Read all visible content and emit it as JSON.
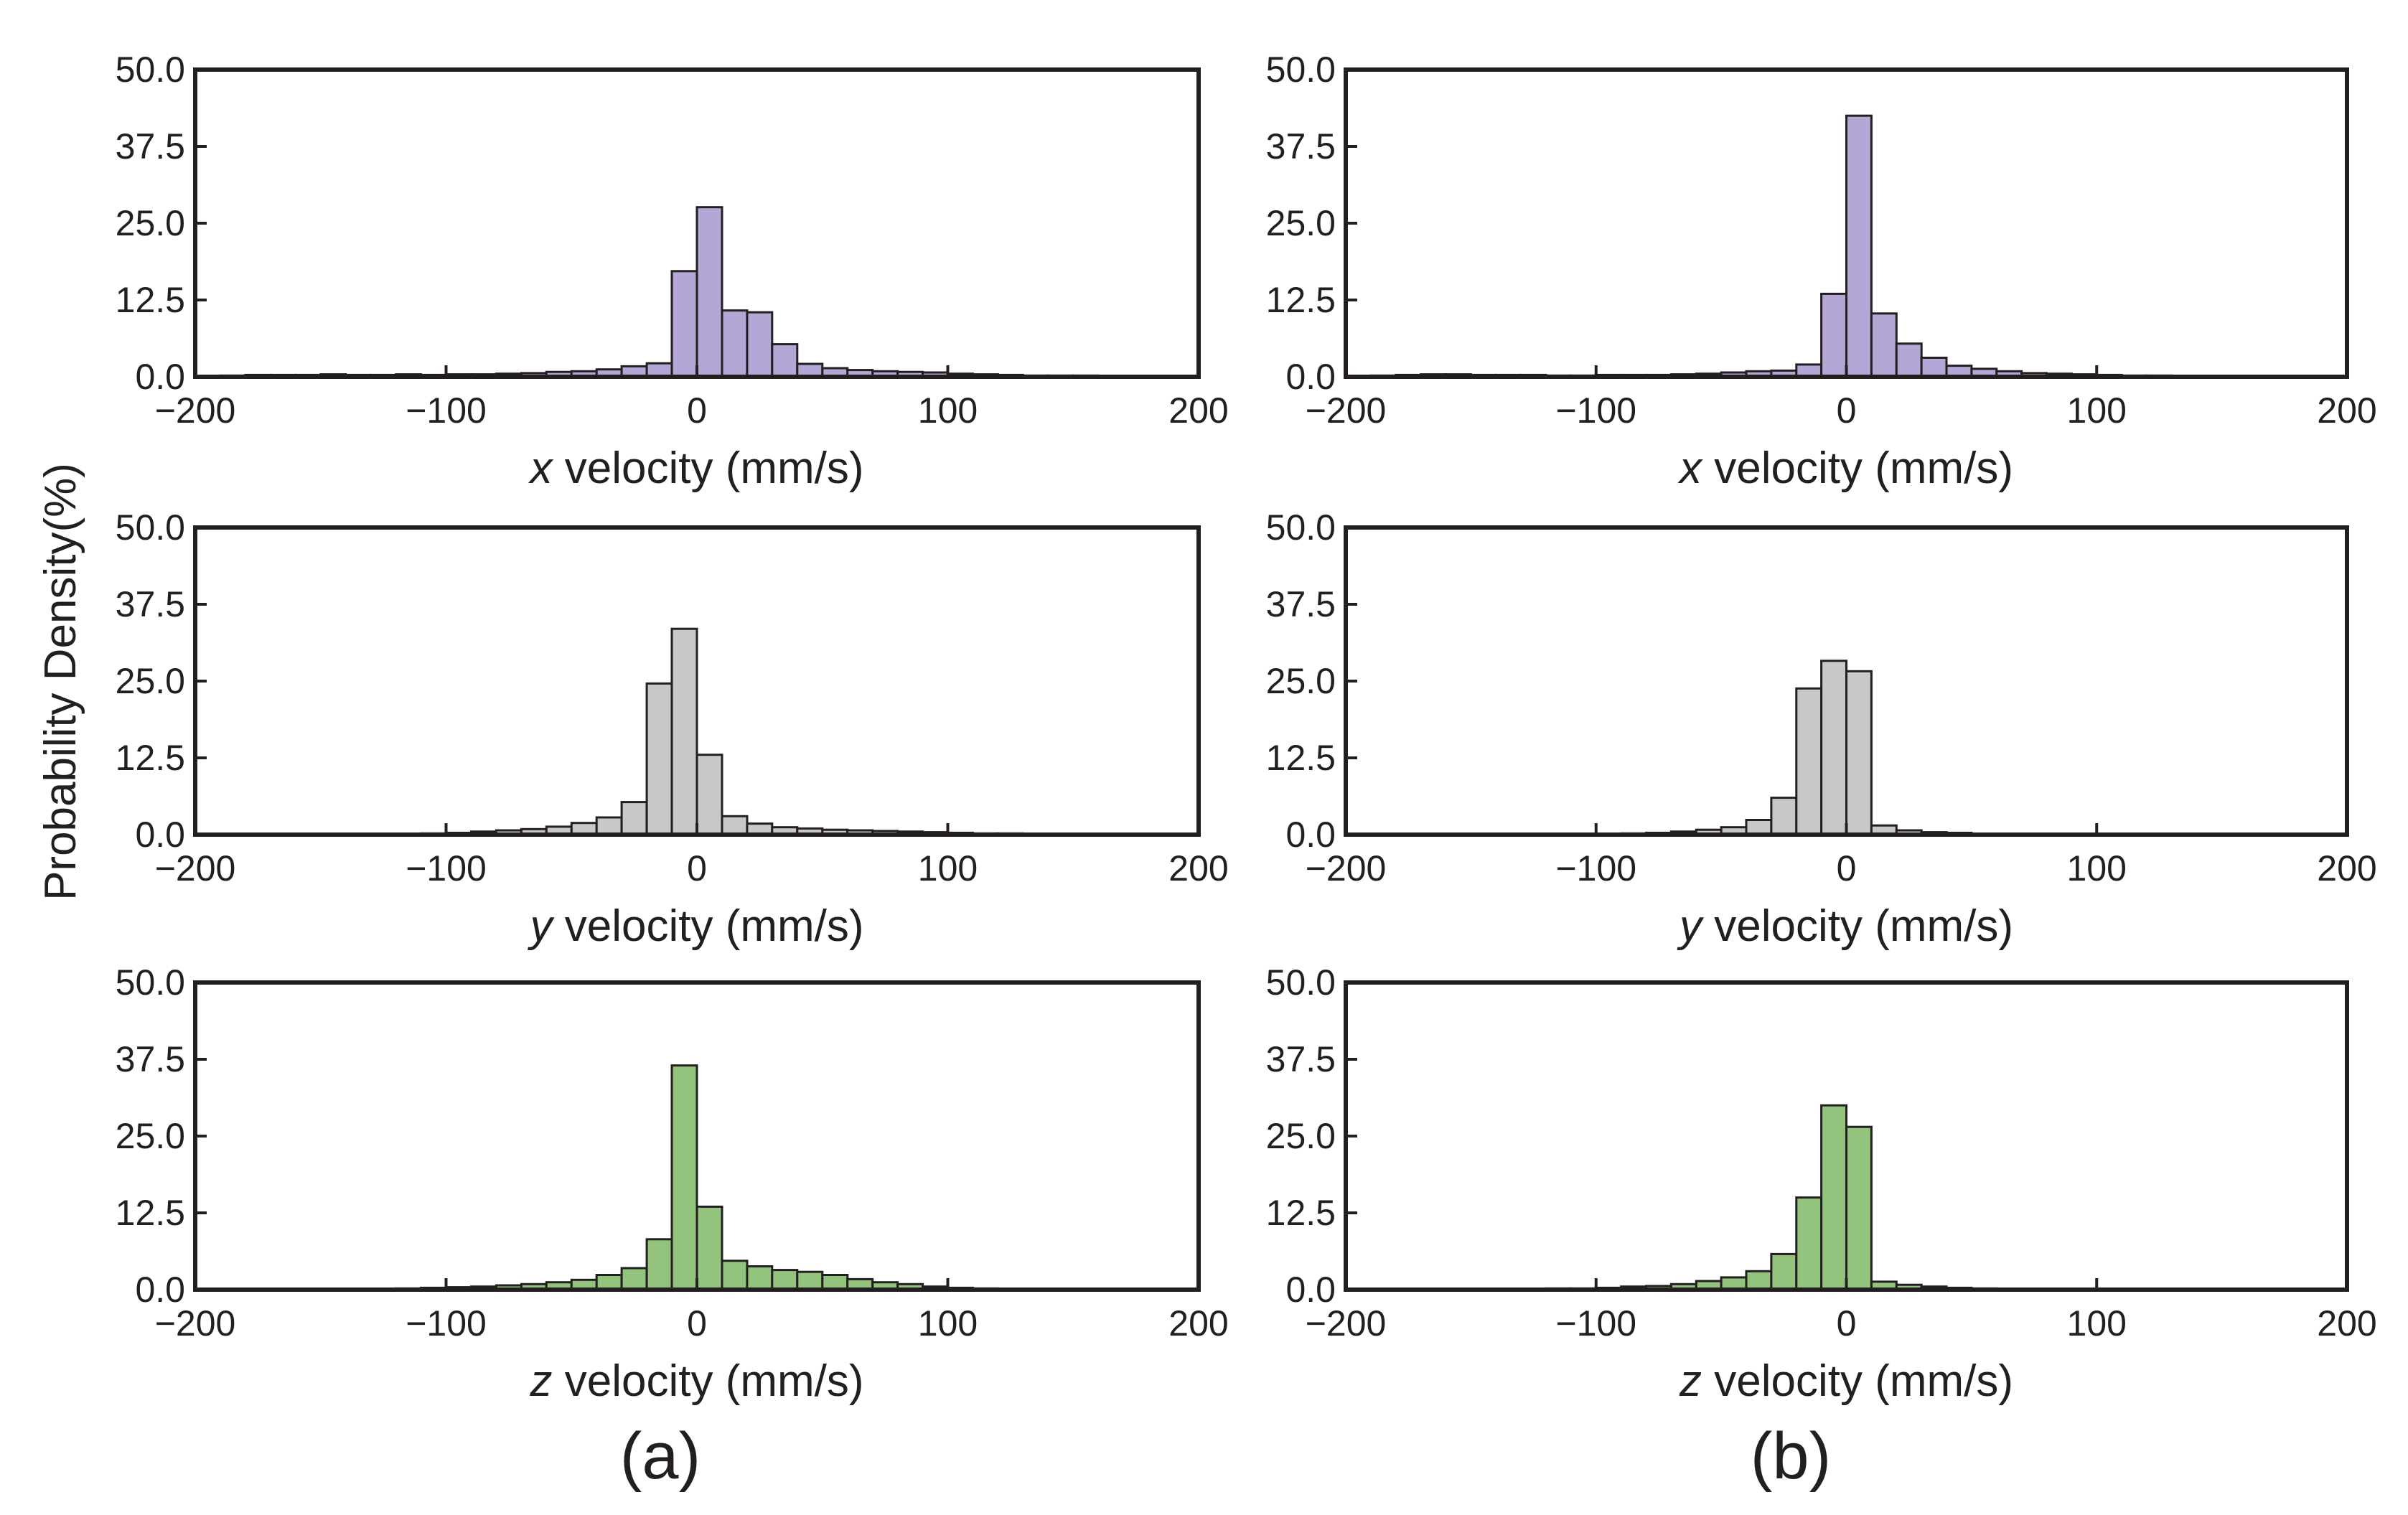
{
  "figure": {
    "ylabel": "Probability Density(%)",
    "column_labels": [
      "(a)",
      "(b)"
    ]
  },
  "chart_data": [
    {
      "id": "a-x",
      "column": "a",
      "type": "bar",
      "color": "#b4a7d6",
      "xlabel_var": "x",
      "xlabel_rest": " velocity (mm/s)",
      "xlim": [
        -200,
        200
      ],
      "ylim": [
        0,
        50
      ],
      "xticks": [
        -200,
        -100,
        0,
        100,
        200
      ],
      "xtick_labels": [
        "−200",
        "−100",
        "0",
        "100",
        "200"
      ],
      "yticks": [
        0,
        12.5,
        25,
        37.5,
        50
      ],
      "ytick_labels": [
        "0.0",
        "12.5",
        "25.0",
        "37.5",
        "50.0"
      ],
      "bin_start": -200,
      "bin_width": 10,
      "values": [
        0.1,
        0.2,
        0.3,
        0.3,
        0.3,
        0.4,
        0.3,
        0.3,
        0.4,
        0.3,
        0.4,
        0.4,
        0.5,
        0.6,
        0.8,
        0.9,
        1.2,
        1.7,
        2.2,
        17.2,
        27.6,
        10.8,
        10.5,
        5.3,
        2.1,
        1.4,
        1.1,
        0.9,
        0.8,
        0.7,
        0.5,
        0.4,
        0.3,
        0.2,
        0.2,
        0.2,
        0.1,
        0.0,
        0.0,
        0.0
      ]
    },
    {
      "id": "b-x",
      "column": "b",
      "type": "bar",
      "color": "#b4a7d6",
      "xlabel_var": "x",
      "xlabel_rest": " velocity (mm/s)",
      "xlim": [
        -200,
        200
      ],
      "ylim": [
        0,
        50
      ],
      "xticks": [
        -200,
        -100,
        0,
        100,
        200
      ],
      "xtick_labels": [
        "−200",
        "−100",
        "0",
        "100",
        "200"
      ],
      "yticks": [
        0,
        12.5,
        25,
        37.5,
        50
      ],
      "ytick_labels": [
        "0.0",
        "12.5",
        "25.0",
        "37.5",
        "50.0"
      ],
      "bin_start": -200,
      "bin_width": 10,
      "values": [
        0.1,
        0.2,
        0.3,
        0.4,
        0.4,
        0.3,
        0.3,
        0.3,
        0.2,
        0.2,
        0.3,
        0.3,
        0.3,
        0.4,
        0.5,
        0.7,
        0.9,
        1.0,
        2.0,
        13.5,
        42.5,
        10.3,
        5.4,
        3.1,
        1.8,
        1.3,
        0.9,
        0.6,
        0.5,
        0.4,
        0.3,
        0.2,
        0.2,
        0.1,
        0.1,
        0.0,
        0.0,
        0.0,
        0.0,
        0.0
      ]
    },
    {
      "id": "a-y",
      "column": "a",
      "type": "bar",
      "color": "#c8c8c8",
      "xlabel_var": "y",
      "xlabel_rest": " velocity (mm/s)",
      "xlim": [
        -200,
        200
      ],
      "ylim": [
        0,
        50
      ],
      "xticks": [
        -200,
        -100,
        0,
        100,
        200
      ],
      "xtick_labels": [
        "−200",
        "−100",
        "0",
        "100",
        "200"
      ],
      "yticks": [
        0,
        12.5,
        25,
        37.5,
        50
      ],
      "ytick_labels": [
        "0.0",
        "12.5",
        "25.0",
        "37.5",
        "50.0"
      ],
      "bin_start": -200,
      "bin_width": 10,
      "values": [
        0.0,
        0.0,
        0.0,
        0.0,
        0.0,
        0.0,
        0.0,
        0.0,
        0.1,
        0.2,
        0.3,
        0.5,
        0.7,
        0.9,
        1.3,
        1.9,
        2.8,
        5.3,
        24.6,
        33.5,
        13.0,
        3.0,
        1.8,
        1.2,
        1.0,
        0.8,
        0.7,
        0.6,
        0.5,
        0.4,
        0.3,
        0.2,
        0.2,
        0.1,
        0.1,
        0.0,
        0.0,
        0.0,
        0.0,
        0.0
      ]
    },
    {
      "id": "b-y",
      "column": "b",
      "type": "bar",
      "color": "#c8c8c8",
      "xlabel_var": "y",
      "xlabel_rest": " velocity (mm/s)",
      "xlim": [
        -200,
        200
      ],
      "ylim": [
        0,
        50
      ],
      "xticks": [
        -200,
        -100,
        0,
        100,
        200
      ],
      "xtick_labels": [
        "−200",
        "−100",
        "0",
        "100",
        "200"
      ],
      "yticks": [
        0,
        12.5,
        25,
        37.5,
        50
      ],
      "ytick_labels": [
        "0.0",
        "12.5",
        "25.0",
        "37.5",
        "50.0"
      ],
      "bin_start": -200,
      "bin_width": 10,
      "values": [
        0.0,
        0.0,
        0.0,
        0.0,
        0.0,
        0.0,
        0.0,
        0.0,
        0.0,
        0.0,
        0.1,
        0.2,
        0.3,
        0.5,
        0.8,
        1.2,
        2.4,
        6.0,
        23.8,
        28.3,
        26.6,
        1.5,
        0.7,
        0.4,
        0.3,
        0.1,
        0.0,
        0.0,
        0.0,
        0.0,
        0.0,
        0.0,
        0.0,
        0.0,
        0.0,
        0.0,
        0.0,
        0.0,
        0.0,
        0.0
      ]
    },
    {
      "id": "a-z",
      "column": "a",
      "type": "bar",
      "color": "#93c47d",
      "xlabel_var": "z",
      "xlabel_rest": " velocity (mm/s)",
      "xlim": [
        -200,
        200
      ],
      "ylim": [
        0,
        50
      ],
      "xticks": [
        -200,
        -100,
        0,
        100,
        200
      ],
      "xtick_labels": [
        "−200",
        "−100",
        "0",
        "100",
        "200"
      ],
      "yticks": [
        0,
        12.5,
        25,
        37.5,
        50
      ],
      "ytick_labels": [
        "0.0",
        "12.5",
        "25.0",
        "37.5",
        "50.0"
      ],
      "bin_start": -200,
      "bin_width": 10,
      "values": [
        0.0,
        0.0,
        0.0,
        0.0,
        0.0,
        0.0,
        0.1,
        0.1,
        0.2,
        0.3,
        0.4,
        0.5,
        0.7,
        0.9,
        1.2,
        1.6,
        2.4,
        3.5,
        8.2,
        36.5,
        13.5,
        4.7,
        3.8,
        3.2,
        2.9,
        2.4,
        1.7,
        1.2,
        0.9,
        0.5,
        0.3,
        0.2,
        0.1,
        0.0,
        0.0,
        0.0,
        0.0,
        0.0,
        0.0,
        0.0
      ]
    },
    {
      "id": "b-z",
      "column": "b",
      "type": "bar",
      "color": "#93c47d",
      "xlabel_var": "z",
      "xlabel_rest": " velocity (mm/s)",
      "xlim": [
        -200,
        200
      ],
      "ylim": [
        0,
        50
      ],
      "xticks": [
        -200,
        -100,
        0,
        100,
        200
      ],
      "xtick_labels": [
        "−200",
        "−100",
        "0",
        "100",
        "200"
      ],
      "yticks": [
        0,
        12.5,
        25,
        37.5,
        50
      ],
      "ytick_labels": [
        "0.0",
        "12.5",
        "25.0",
        "37.5",
        "50.0"
      ],
      "bin_start": -200,
      "bin_width": 10,
      "values": [
        0.0,
        0.0,
        0.0,
        0.0,
        0.0,
        0.0,
        0.1,
        0.1,
        0.2,
        0.2,
        0.3,
        0.5,
        0.6,
        0.9,
        1.4,
        2.0,
        3.0,
        5.8,
        15.0,
        30.0,
        26.5,
        1.3,
        0.8,
        0.5,
        0.3,
        0.2,
        0.1,
        0.0,
        0.0,
        0.0,
        0.0,
        0.0,
        0.0,
        0.0,
        0.0,
        0.0,
        0.0,
        0.0,
        0.0,
        0.0
      ]
    }
  ]
}
